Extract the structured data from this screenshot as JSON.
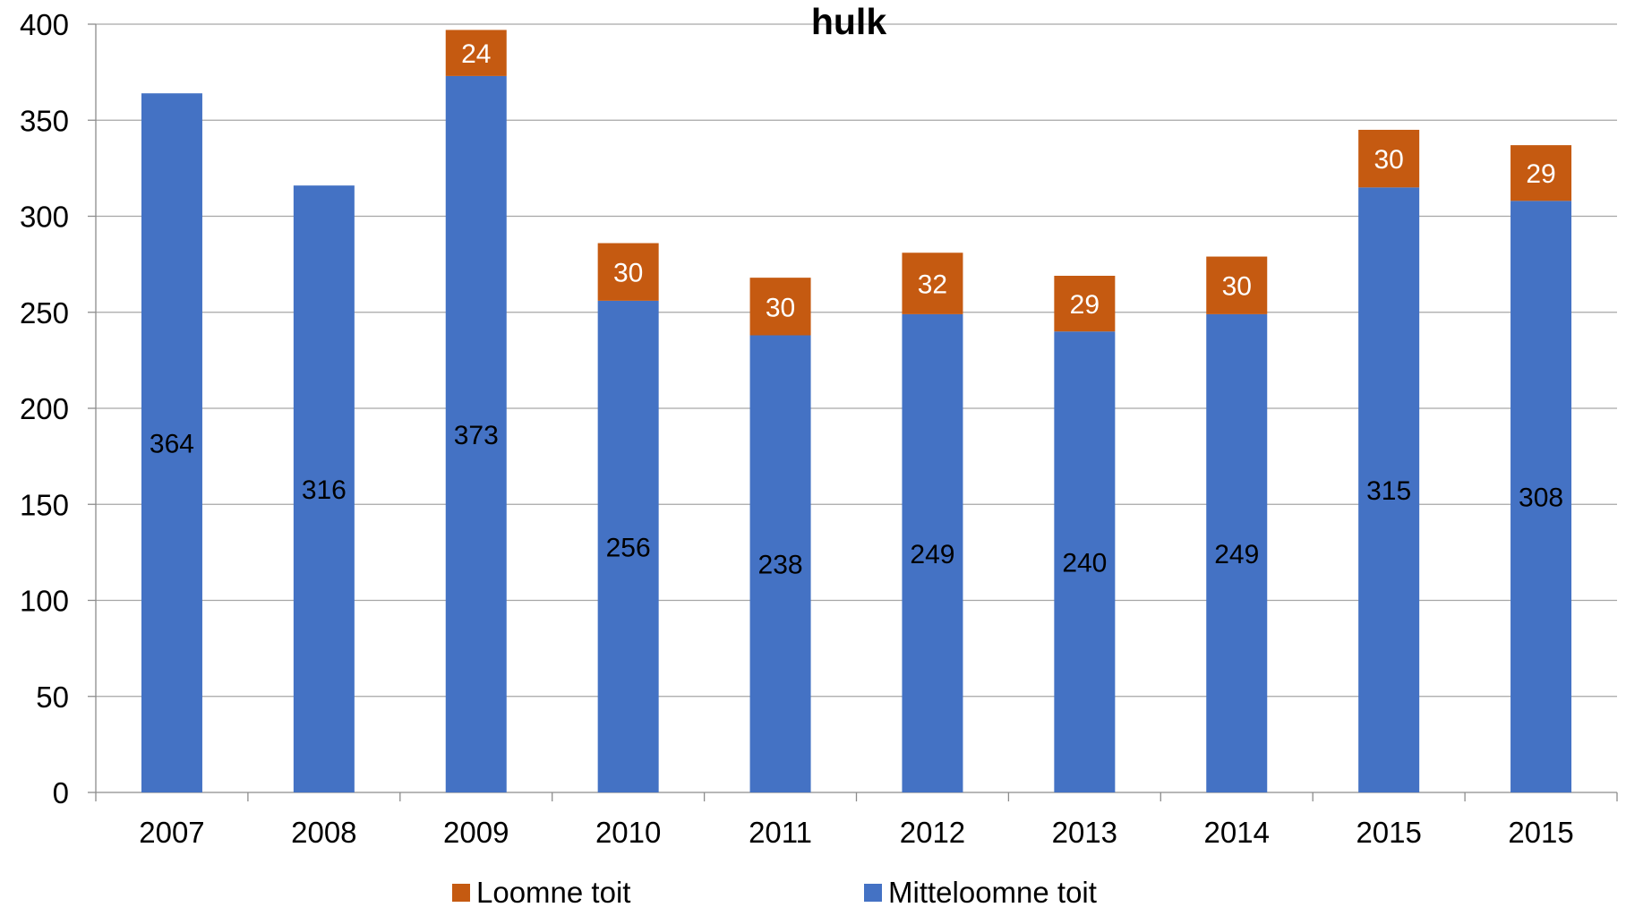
{
  "chart_data": {
    "type": "bar",
    "stacked": true,
    "title": "hulk",
    "xlabel": "",
    "ylabel": "",
    "categories": [
      "2007",
      "2008",
      "2009",
      "2010",
      "2011",
      "2012",
      "2013",
      "2014",
      "2015",
      "2015"
    ],
    "ylim": [
      0,
      400
    ],
    "yticks": [
      0,
      50,
      100,
      150,
      200,
      250,
      300,
      350,
      400
    ],
    "grid": true,
    "legend_position": "bottom",
    "series": [
      {
        "name": "Mitteloomne toit",
        "color": "#4472C4",
        "label_color": "#000000",
        "values": [
          364,
          316,
          373,
          256,
          238,
          249,
          240,
          249,
          315,
          308
        ]
      },
      {
        "name": "Loomne toit",
        "color": "#C55A11",
        "label_color": "#ffffff",
        "values": [
          null,
          null,
          24,
          30,
          30,
          32,
          29,
          30,
          30,
          29
        ]
      }
    ],
    "legend_order": [
      "Loomne toit",
      "Mitteloomne toit"
    ]
  }
}
